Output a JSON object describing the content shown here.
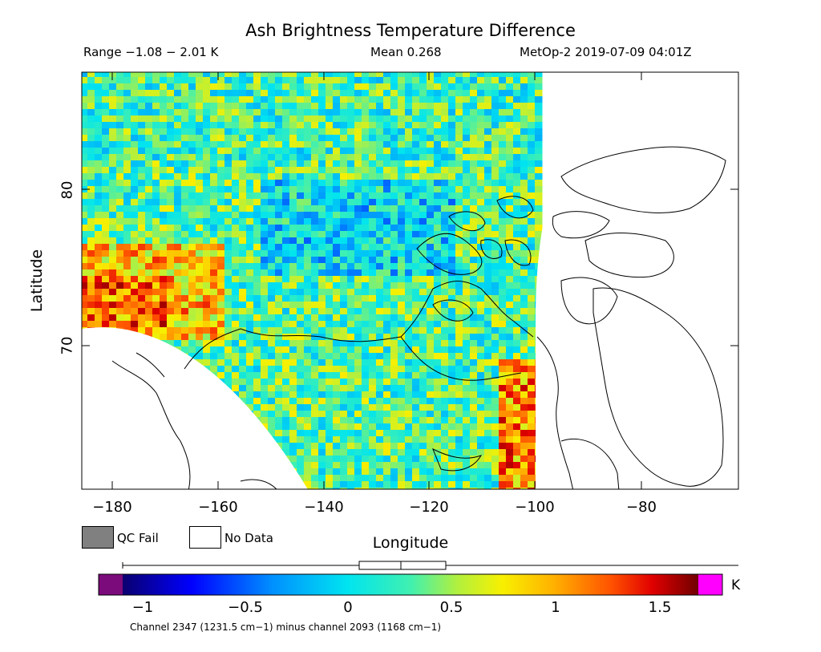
{
  "header": {
    "title": "Ash Brightness Temperature Difference",
    "range": "Range −1.08 − 2.01 K",
    "mean": "Mean 0.268",
    "satellite_time": "MetOp-2 2019-07-09 04:01Z"
  },
  "axes": {
    "ylabel": "Latitude",
    "xlabel": "Longitude",
    "yticks": [
      "80",
      "70"
    ],
    "xticks": [
      "−180",
      "−160",
      "−140",
      "−120",
      "−100",
      "−80"
    ]
  },
  "map": {
    "lon_range": [
      -185,
      -65
    ],
    "lat_range": [
      61,
      87
    ],
    "data_mean": 0.268,
    "data_range": [
      -1.08,
      2.01
    ]
  },
  "legend": {
    "qc_fail": "QC Fail",
    "no_data": "No Data",
    "qc_fail_color": "#808080",
    "no_data_color": "#ffffff"
  },
  "colorbar": {
    "unit": "K",
    "ticks": [
      "−1",
      "−0.5",
      "0",
      "0.5",
      "1",
      "1.5"
    ],
    "vmin": -1.1,
    "vmax": 1.7,
    "under_color": "#7b0a7b",
    "over_color": "#ff00ff"
  },
  "footer": {
    "channel": "Channel 2347 (1231.5 cm−1) minus channel 2093 (1168 cm−1)"
  }
}
